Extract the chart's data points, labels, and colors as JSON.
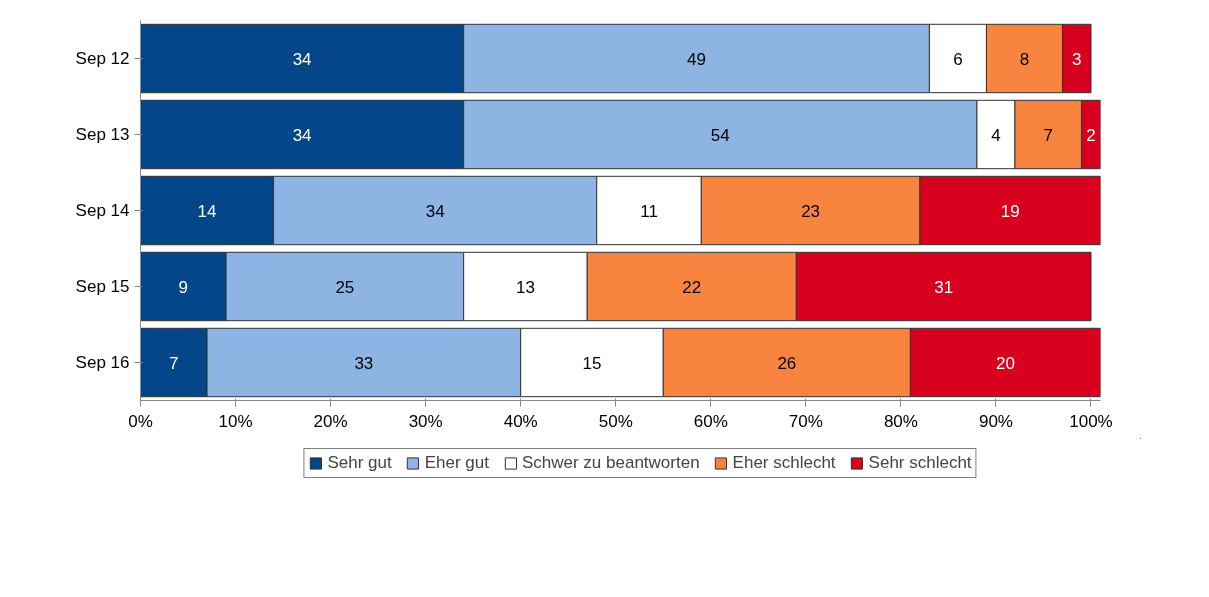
{
  "chart_data": {
    "type": "bar",
    "orientation": "horizontal",
    "stacked": true,
    "data_labels": true,
    "legend": "bottom",
    "grid": false,
    "categories": [
      "Sep 12",
      "Sep 13",
      "Sep 14",
      "Sep 15",
      "Sep 16"
    ],
    "series": [
      {
        "name": "Sehr gut",
        "color": "#03468a",
        "values": [
          34,
          34,
          14,
          9,
          7
        ]
      },
      {
        "name": "Eher gut",
        "color": "#8db4e2",
        "values": [
          49,
          54,
          34,
          25,
          33
        ]
      },
      {
        "name": "Schwer zu beantworten",
        "color": "#ffffff",
        "values": [
          6,
          4,
          11,
          13,
          15
        ]
      },
      {
        "name": "Eher schlecht",
        "color": "#f9843f",
        "values": [
          8,
          7,
          23,
          22,
          26
        ]
      },
      {
        "name": "Sehr schlecht",
        "color": "#d7001f",
        "values": [
          3,
          2,
          19,
          31,
          20
        ]
      }
    ],
    "xlim": [
      0,
      101
    ],
    "xticks": [
      {
        "value": 0,
        "label": "0%"
      },
      {
        "value": 10,
        "label": "10%"
      },
      {
        "value": 20,
        "label": "20%"
      },
      {
        "value": 30,
        "label": "30%"
      },
      {
        "value": 40,
        "label": "40%"
      },
      {
        "value": 50,
        "label": "50%"
      },
      {
        "value": 60,
        "label": "60%"
      },
      {
        "value": 70,
        "label": "70%"
      },
      {
        "value": 80,
        "label": "80%"
      },
      {
        "value": 90,
        "label": "90%"
      },
      {
        "value": 100,
        "label": "100%"
      }
    ]
  }
}
